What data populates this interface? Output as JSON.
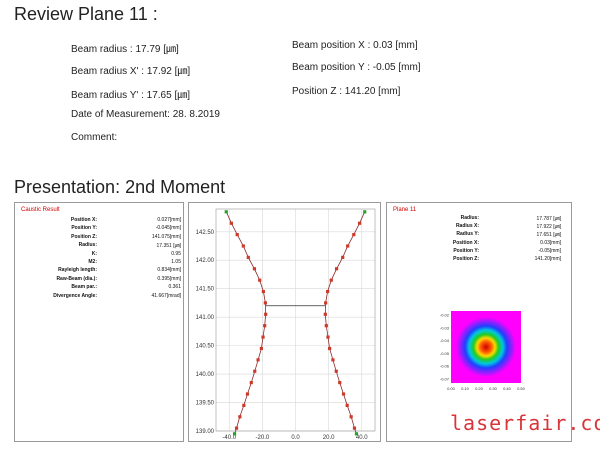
{
  "review_title": "Review Plane 11 :",
  "measurements": {
    "beam_radius": "Beam radius : 17.79 [㎛]",
    "beam_radius_x": "Beam radius X' : 17.92 [㎛]",
    "beam_radius_y": "Beam radius Y' : 17.65 [㎛]",
    "date": "Date of Measurement: 28. 8.2019",
    "comment": "Comment:",
    "pos_x": "Beam position X : 0.03 [mm]",
    "pos_y": "Beam position Y : -0.05 [mm]",
    "pos_z": "Position Z : 141.20 [mm]"
  },
  "presentation_title": "Presentation: 2nd Moment",
  "caustic": {
    "title": "Caustic Result",
    "rows": [
      {
        "label": "Position X:",
        "value": "0.027[mm]"
      },
      {
        "label": "Position Y:",
        "value": "-0.045[mm]"
      },
      {
        "label": "Position Z:",
        "value": "141.075[mm]"
      },
      {
        "label": "Radius:",
        "value": "17.351 [㎛]"
      },
      {
        "label": "K:",
        "value": "0.95"
      },
      {
        "label": "M2:",
        "value": "1.05"
      },
      {
        "label": "Rayleigh length:",
        "value": "0.834[mm]"
      },
      {
        "label": "Raw-Beam (dia.):",
        "value": "0.395[mm]"
      },
      {
        "label": "Beam par.:",
        "value": "0.361"
      },
      {
        "label": "Divergence Angle:",
        "value": "41.667[mrad]"
      }
    ]
  },
  "plane": {
    "title": "Plane 11",
    "rows": [
      {
        "label": "Radius:",
        "value": "17.787 [㎛]"
      },
      {
        "label": "Radius X:",
        "value": "17.922 [㎛]"
      },
      {
        "label": "Radius Y:",
        "value": "17.651 [㎛]"
      },
      {
        "label": "Position X:",
        "value": "0.03[mm]"
      },
      {
        "label": "Position Y:",
        "value": "-0.05[mm]"
      },
      {
        "label": "Position Z:",
        "value": "141.20[mm]"
      }
    ],
    "mini_x_ticks": [
      "0.00",
      "0.10",
      "0.20",
      "0.30",
      "0.40",
      "0.50"
    ],
    "mini_y_ticks": [
      "-0.02",
      "-0.03",
      "-0.04",
      "-0.05",
      "-0.06",
      "-0.07"
    ]
  },
  "watermark": "laserfair.com",
  "chart_data": {
    "type": "scatter",
    "title": "",
    "xlabel": "",
    "ylabel": "",
    "xlim": [
      -48,
      48
    ],
    "ylim": [
      139.0,
      142.9
    ],
    "x_ticks": [
      "-40.0",
      "-20.0",
      "0.0",
      "20.0",
      "40.0"
    ],
    "x_tick_values": [
      -40,
      -20,
      0,
      20,
      40
    ],
    "y_ticks": [
      "139.00",
      "139.50",
      "140.00",
      "140.50",
      "141.00",
      "141.50",
      "142.00",
      "142.50"
    ],
    "y_tick_values": [
      139.0,
      139.5,
      140.0,
      140.5,
      141.0,
      141.5,
      142.0,
      142.5
    ],
    "waist": {
      "z": 141.2,
      "x_left": -18,
      "x_right": 18
    },
    "points": [
      {
        "z": 142.85,
        "r": 41.8
      },
      {
        "z": 142.65,
        "r": 38.7
      },
      {
        "z": 142.45,
        "r": 35.2
      },
      {
        "z": 142.25,
        "r": 31.5
      },
      {
        "z": 142.05,
        "r": 28.5
      },
      {
        "z": 141.85,
        "r": 24.8
      },
      {
        "z": 141.65,
        "r": 21.6
      },
      {
        "z": 141.45,
        "r": 19.4
      },
      {
        "z": 141.25,
        "r": 18.2
      },
      {
        "z": 141.05,
        "r": 18.0
      },
      {
        "z": 140.85,
        "r": 18.6
      },
      {
        "z": 140.65,
        "r": 19.6
      },
      {
        "z": 140.45,
        "r": 20.6
      },
      {
        "z": 140.25,
        "r": 22.6
      },
      {
        "z": 140.05,
        "r": 24.6
      },
      {
        "z": 139.85,
        "r": 26.7
      },
      {
        "z": 139.65,
        "r": 29.0
      },
      {
        "z": 139.45,
        "r": 31.2
      },
      {
        "z": 139.25,
        "r": 33.6
      },
      {
        "z": 139.05,
        "r": 35.6
      },
      {
        "z": 138.95,
        "r": 36.8
      }
    ]
  }
}
